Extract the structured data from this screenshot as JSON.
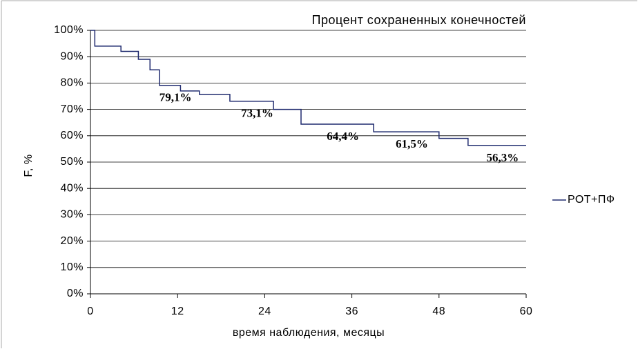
{
  "chart_data": {
    "type": "step",
    "title": "Процент сохраненных конечностей",
    "xlabel": "время наблюдения, месяцы",
    "ylabel": "F, %",
    "xlim": [
      0,
      60
    ],
    "xticks": [
      0,
      12,
      24,
      36,
      48,
      60
    ],
    "ylim": [
      0,
      100
    ],
    "yticks": [
      {
        "value": 0,
        "label": "0%"
      },
      {
        "value": 10,
        "label": "10%"
      },
      {
        "value": 20,
        "label": "20%"
      },
      {
        "value": 30,
        "label": "30%"
      },
      {
        "value": 40,
        "label": "40%"
      },
      {
        "value": 50,
        "label": "50%"
      },
      {
        "value": 60,
        "label": "60%"
      },
      {
        "value": 70,
        "label": "70%"
      },
      {
        "value": 80,
        "label": "80%"
      },
      {
        "value": 90,
        "label": "90%"
      },
      {
        "value": 100,
        "label": "100%"
      }
    ],
    "grid": true,
    "legend": "right",
    "series": [
      {
        "name": "РОТ+ПФ",
        "color": "#1f2a6e",
        "x": [
          0,
          0.6,
          4.2,
          6.6,
          8.2,
          9.5,
          12.4,
          15,
          19.2,
          25.2,
          29,
          39,
          48,
          52,
          60
        ],
        "values": [
          100,
          94,
          92,
          89,
          85,
          79.1,
          77,
          75.7,
          73.1,
          70,
          64.4,
          61.5,
          59,
          56.3,
          56.3
        ],
        "value_labels": [
          null,
          null,
          null,
          null,
          null,
          "79,1%",
          null,
          null,
          "73,1%",
          null,
          "64,4%",
          "61,5%",
          null,
          "56,3%",
          null
        ]
      }
    ]
  }
}
